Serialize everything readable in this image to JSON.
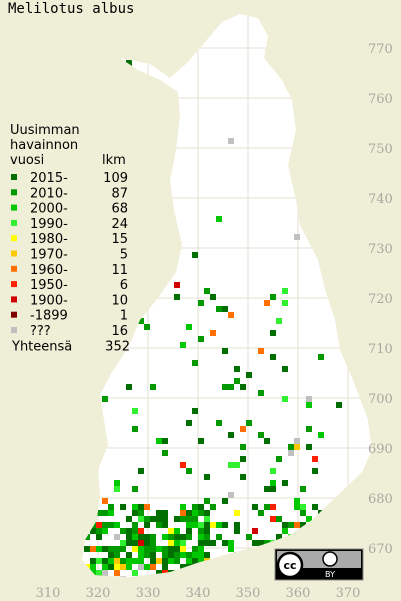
{
  "title": "Melilotus albus",
  "legend": {
    "header": [
      "Uusimman",
      "havainnon"
    ],
    "column_labels": [
      "vuosi",
      "lkm"
    ],
    "rows": [
      {
        "label": "2015-",
        "count": 109,
        "color": "#006e00"
      },
      {
        "label": "2010-",
        "count": 87,
        "color": "#009a00"
      },
      {
        "label": "2000-",
        "count": 68,
        "color": "#00c800"
      },
      {
        "label": "1990-",
        "count": 24,
        "color": "#30f030"
      },
      {
        "label": "1980-",
        "count": 15,
        "color": "#ffff00"
      },
      {
        "label": "1970-",
        "count": 5,
        "color": "#ffc800"
      },
      {
        "label": "1960-",
        "count": 11,
        "color": "#ff7000"
      },
      {
        "label": "1950-",
        "count": 6,
        "color": "#ff2000"
      },
      {
        "label": "1900-",
        "count": 10,
        "color": "#d00000"
      },
      {
        "label": "-1899",
        "count": 1,
        "color": "#800000"
      },
      {
        "label": "???",
        "count": 16,
        "color": "#c0c0c0"
      }
    ],
    "total_label": "Yhteensä",
    "total": 352
  },
  "y_labels": [
    770,
    760,
    750,
    740,
    730,
    720,
    710,
    700,
    690,
    680,
    670
  ],
  "x_labels": [
    310,
    320,
    330,
    340,
    350,
    360,
    370
  ],
  "badge": {
    "cc": "cc",
    "by": "BY"
  }
}
